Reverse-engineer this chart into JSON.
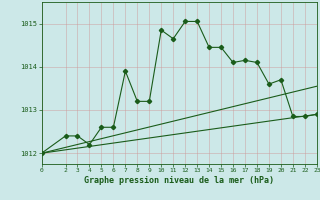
{
  "title": "Graphe pression niveau de la mer (hPa)",
  "background_color": "#cce8e8",
  "grid_color": "#aacccc",
  "line_color": "#1a5c1a",
  "xlim": [
    0,
    23
  ],
  "ylim": [
    1011.75,
    1015.5
  ],
  "yticks": [
    1012,
    1013,
    1014,
    1015
  ],
  "xticks": [
    0,
    2,
    3,
    4,
    5,
    6,
    7,
    8,
    9,
    10,
    11,
    12,
    13,
    14,
    15,
    16,
    17,
    18,
    19,
    20,
    21,
    22,
    23
  ],
  "main_series_x": [
    0,
    2,
    3,
    4,
    5,
    6,
    7,
    8,
    9,
    10,
    11,
    12,
    13,
    14,
    15,
    16,
    17,
    18,
    19,
    20,
    21,
    22,
    23
  ],
  "main_series_y": [
    1012.0,
    1012.4,
    1012.4,
    1012.2,
    1012.6,
    1012.6,
    1013.9,
    1013.2,
    1013.2,
    1014.85,
    1014.65,
    1015.05,
    1015.05,
    1014.45,
    1014.45,
    1014.1,
    1014.15,
    1014.1,
    1013.6,
    1013.7,
    1012.85,
    1012.85,
    1012.9
  ],
  "lower_line1_x": [
    0,
    23
  ],
  "lower_line1_y": [
    1012.0,
    1012.9
  ],
  "lower_line2_x": [
    0,
    23
  ],
  "lower_line2_y": [
    1012.0,
    1013.55
  ]
}
